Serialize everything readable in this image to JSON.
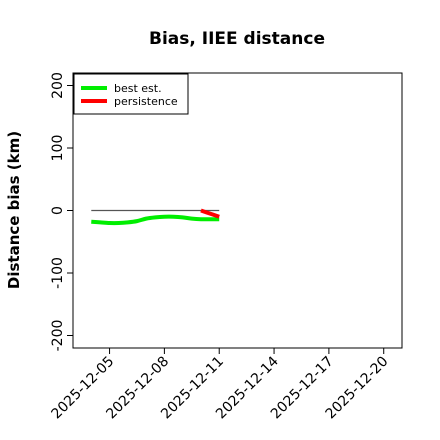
{
  "chart_data": {
    "type": "line",
    "title": "Bias, IIEE distance",
    "xlabel": "",
    "ylabel": "Distance bias (km)",
    "ylim": [
      -220,
      220
    ],
    "xlim": [
      "2025-12-03",
      "2025-12-21"
    ],
    "y_ticks": [
      "-200",
      "-100",
      "0",
      "100",
      "200"
    ],
    "x_ticks": [
      "2025-12-05",
      "2025-12-08",
      "2025-12-11",
      "2025-12-14",
      "2025-12-17",
      "2025-12-20"
    ],
    "grid": false,
    "legend_position": "top-left",
    "reference_line": {
      "y": 0,
      "from": "2025-12-04",
      "to": "2025-12-11",
      "color": "#555555"
    },
    "series": [
      {
        "name": "best est.",
        "color": "#00ee00",
        "points": [
          [
            "2025-12-04",
            -18
          ],
          [
            "2025-12-04T12",
            -19
          ],
          [
            "2025-12-05",
            -20
          ],
          [
            "2025-12-05T12",
            -20
          ],
          [
            "2025-12-06",
            -19
          ],
          [
            "2025-12-06T12",
            -17
          ],
          [
            "2025-12-07",
            -13
          ],
          [
            "2025-12-07T12",
            -11
          ],
          [
            "2025-12-08",
            -10
          ],
          [
            "2025-12-08T12",
            -10
          ],
          [
            "2025-12-09",
            -11
          ],
          [
            "2025-12-09T12",
            -13
          ],
          [
            "2025-12-10",
            -14
          ],
          [
            "2025-12-10T12",
            -14
          ],
          [
            "2025-12-11",
            -14
          ]
        ]
      },
      {
        "name": "persistence",
        "color": "#ff0000",
        "points": [
          [
            "2025-12-10",
            0
          ],
          [
            "2025-12-10T12",
            -5
          ],
          [
            "2025-12-11",
            -10
          ]
        ]
      }
    ]
  }
}
